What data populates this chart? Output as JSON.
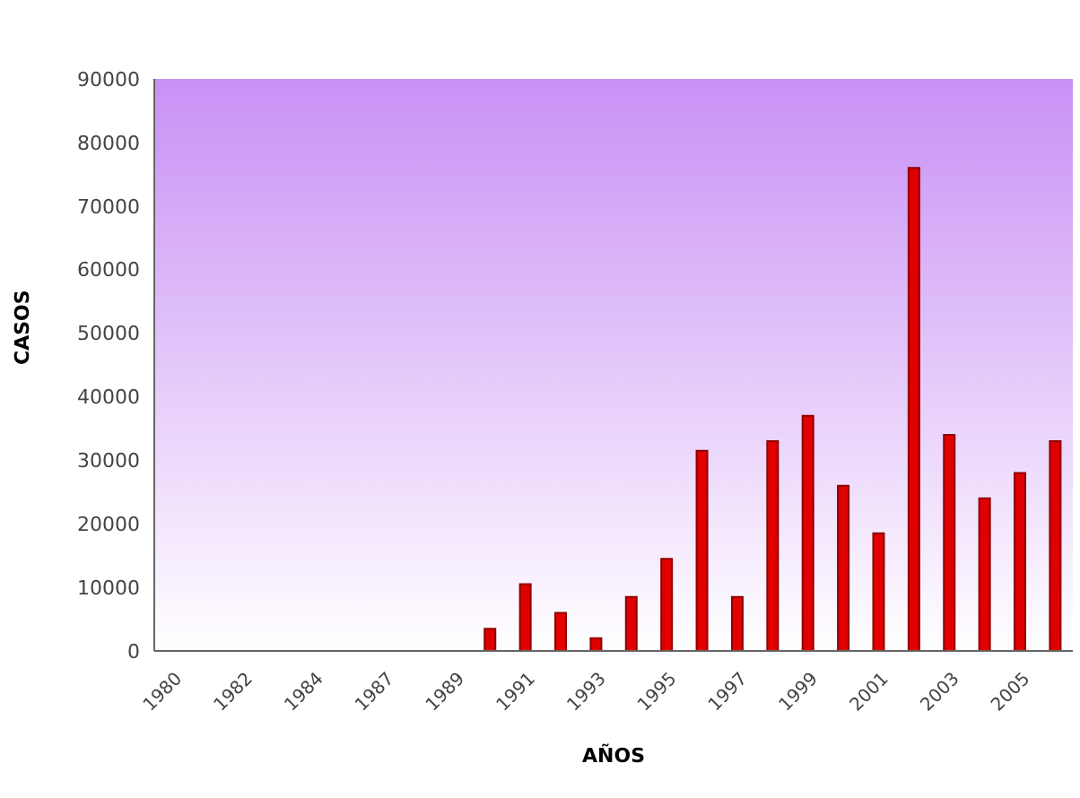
{
  "chart_data": {
    "type": "bar",
    "xlabel": "AÑOS",
    "ylabel": "CASOS",
    "categories": [
      "1980",
      null,
      "1982",
      null,
      "1984",
      null,
      "1987",
      null,
      "1989",
      null,
      "1991",
      null,
      "1993",
      null,
      "1995",
      null,
      "1997",
      null,
      "1999",
      null,
      "2001",
      null,
      "2003",
      null,
      "2005",
      null
    ],
    "values": [
      0,
      0,
      0,
      0,
      0,
      0,
      0,
      0,
      0,
      3500,
      10500,
      6000,
      2000,
      8500,
      14500,
      31500,
      8500,
      33000,
      37000,
      26000,
      18500,
      76000,
      34000,
      24000,
      28000,
      33000
    ],
    "color": "#e00000",
    "ylim": [
      0,
      90000
    ],
    "yticks": [
      0,
      10000,
      20000,
      30000,
      40000,
      50000,
      60000,
      70000,
      80000,
      90000
    ],
    "grid": false,
    "legend": false
  }
}
